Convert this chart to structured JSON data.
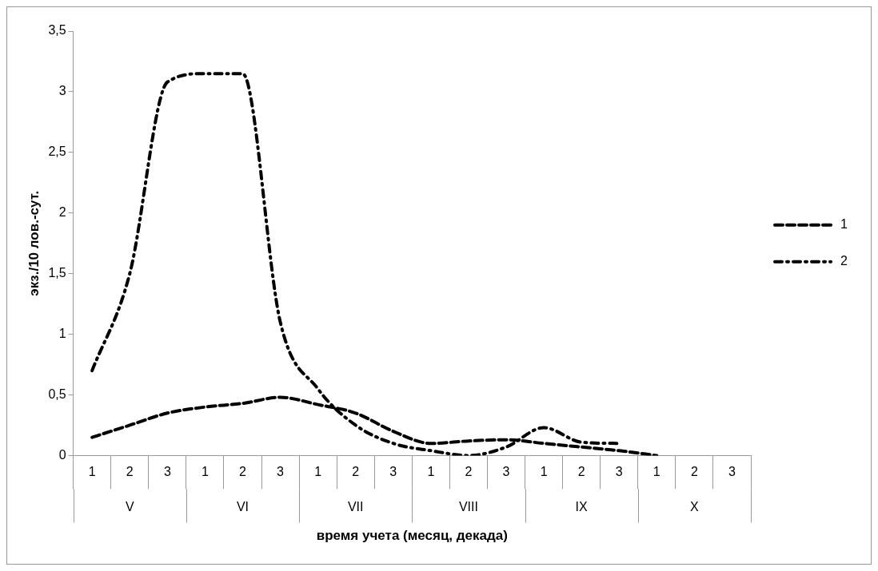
{
  "chart_data": {
    "type": "line",
    "xlabel": "время учета (месяц, декада)",
    "ylabel": "экз./10 лов.-сут.",
    "categories": [
      "1",
      "2",
      "3",
      "1",
      "2",
      "3",
      "1",
      "2",
      "3",
      "1",
      "2",
      "3",
      "1",
      "2",
      "3",
      "1",
      "2",
      "3"
    ],
    "annotations": [
      "V",
      "VI",
      "VII",
      "VIII",
      "IX",
      "X"
    ],
    "series": [
      {
        "name": "1",
        "color": "#000000",
        "line_style": "dashed",
        "values": [
          0.15,
          0.25,
          0.35,
          0.4,
          0.43,
          0.48,
          0.42,
          0.35,
          0.2,
          0.1,
          0.12,
          0.13,
          0.1,
          0.07,
          0.04,
          0,
          null,
          null
        ]
      },
      {
        "name": "2",
        "color": "#000000",
        "line_style": "dashdot",
        "values": [
          0.7,
          1.5,
          3.08,
          3.15,
          3.15,
          1.1,
          0.55,
          0.25,
          0.1,
          0.04,
          0,
          0.07,
          0.23,
          0.11,
          0.1,
          null,
          null,
          null
        ]
      }
    ],
    "ylim": [
      0,
      3.5
    ],
    "yticks": [
      0,
      {
        "value": 0.5,
        "label": "0,5"
      },
      1,
      {
        "value": 1.5,
        "label": "1,5"
      },
      2,
      {
        "value": 2.5,
        "label": "2,5"
      },
      3,
      {
        "value": 3.5,
        "label": "3,5"
      }
    ],
    "grid": false,
    "legend": "right",
    "marker": "none"
  }
}
